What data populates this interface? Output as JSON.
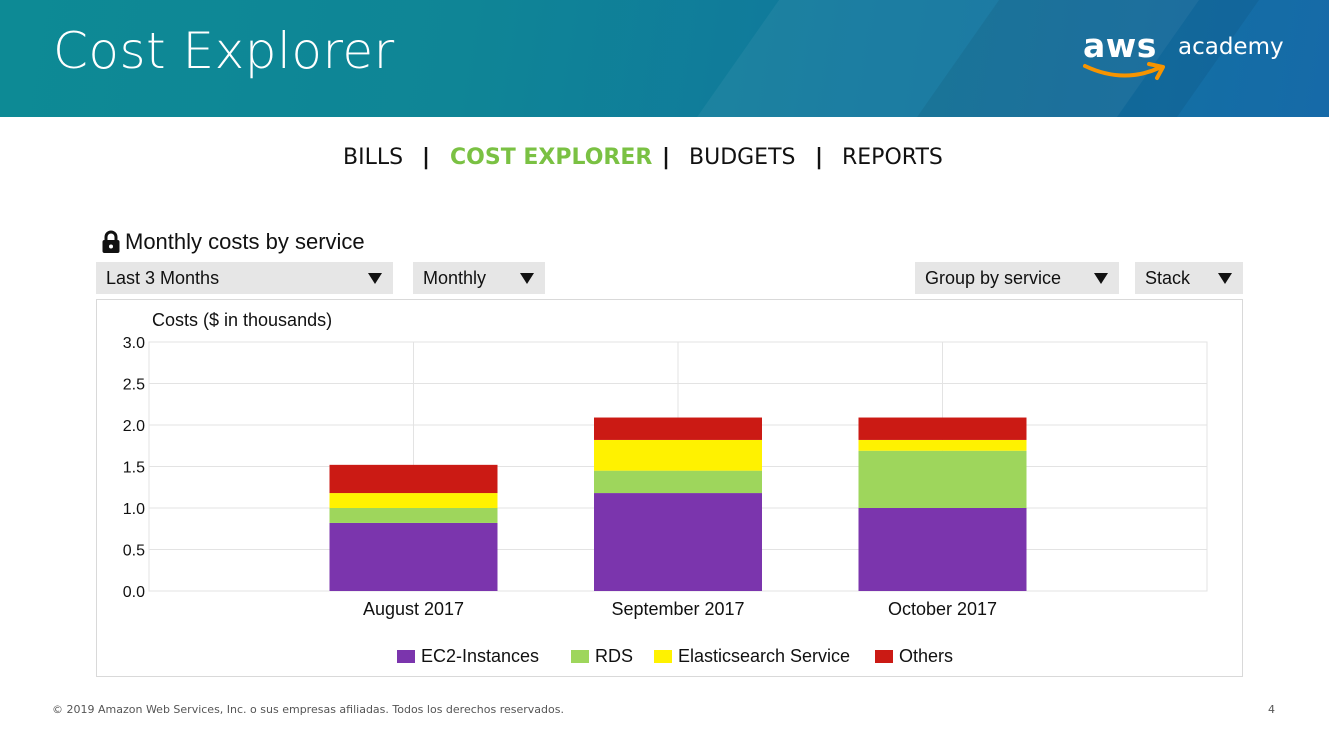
{
  "slide": {
    "title": "Cost Explorer",
    "logo": {
      "brand": "aws",
      "suffix": "academy"
    }
  },
  "nav": {
    "items": [
      "BILLS",
      "COST EXPLORER",
      "BUDGETS",
      "REPORTS"
    ],
    "active": "COST EXPLORER",
    "separator": "|"
  },
  "widget": {
    "title": "Monthly costs by service",
    "title_icon": "lock-icon",
    "filters": {
      "range": "Last 3 Months",
      "granularity": "Monthly",
      "group": "Group by service",
      "style": "Stack"
    }
  },
  "colors": {
    "banner": "#0f8596",
    "nav_active": "#7ac143",
    "ec2": "#7b35ad",
    "rds": "#9ed65c",
    "elasticsearch": "#fff200",
    "others": "#cb1a14"
  },
  "chart_data": {
    "type": "bar",
    "stacked": true,
    "ylabel": "Costs ($ in thousands)",
    "ylim": [
      0,
      3.0
    ],
    "yticks": [
      "3.0",
      "2.5",
      "2.0",
      "1.5",
      "1.0",
      "0.5",
      "0.0"
    ],
    "grid": true,
    "legend_position": "bottom",
    "categories": [
      "August 2017",
      "September 2017",
      "October 2017"
    ],
    "series": [
      {
        "name": "EC2-Instances",
        "color": "#7b35ad",
        "values": [
          0.82,
          1.18,
          1.0
        ]
      },
      {
        "name": "RDS",
        "color": "#9ed65c",
        "values": [
          0.18,
          0.27,
          0.69
        ]
      },
      {
        "name": "Elasticsearch Service",
        "color": "#fff200",
        "values": [
          0.18,
          0.37,
          0.13
        ]
      },
      {
        "name": "Others",
        "color": "#cb1a14",
        "values": [
          0.34,
          0.27,
          0.27
        ]
      }
    ]
  },
  "footer": {
    "copyright": "© 2019 Amazon Web Services, Inc. o sus empresas afiliadas. Todos los derechos reservados.",
    "page": "4"
  }
}
